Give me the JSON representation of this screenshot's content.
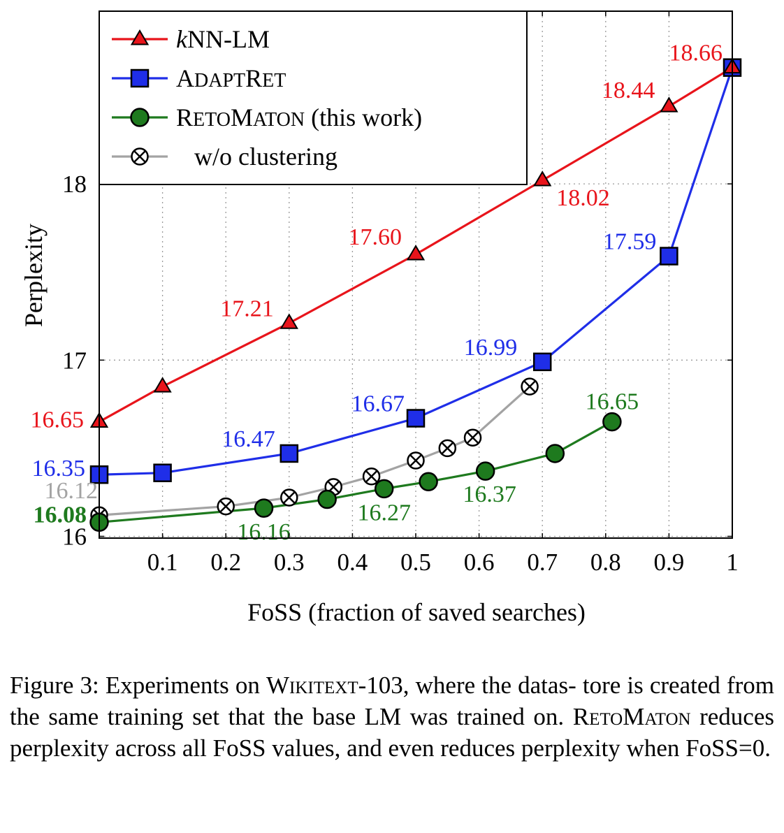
{
  "chart_data": {
    "type": "line",
    "xlabel": "FoSS (fraction of saved searches)",
    "ylabel": "Perplexity",
    "xlim": [
      0,
      1
    ],
    "ylim": [
      15.99,
      18.98
    ],
    "x_ticks": [
      "0.1",
      "0.2",
      "0.3",
      "0.4",
      "0.5",
      "0.6",
      "0.7",
      "0.8",
      "0.9",
      "1"
    ],
    "y_ticks": [
      "16",
      "17",
      "18"
    ],
    "grid": "dotted",
    "legend_position": "top-left",
    "series": [
      {
        "name": "kNN-LM",
        "color": "#e8141b",
        "marker": "triangle",
        "x": [
          0,
          0.1,
          0.3,
          0.5,
          0.7,
          0.9,
          1.0
        ],
        "y": [
          16.65,
          16.85,
          17.21,
          17.6,
          18.02,
          18.44,
          18.66
        ],
        "labels": [
          {
            "i": 0,
            "text": "16.65"
          },
          {
            "i": 2,
            "text": "17.21"
          },
          {
            "i": 3,
            "text": "17.60"
          },
          {
            "i": 4,
            "text": "18.02"
          },
          {
            "i": 5,
            "text": "18.44"
          },
          {
            "i": 6,
            "text": "18.66"
          }
        ]
      },
      {
        "name": "ADAPTRET",
        "color": "#1f2ee8",
        "marker": "square",
        "x": [
          0,
          0.1,
          0.3,
          0.5,
          0.7,
          0.9,
          1.0
        ],
        "y": [
          16.35,
          16.36,
          16.47,
          16.67,
          16.99,
          17.59,
          18.66
        ],
        "labels": [
          {
            "i": 0,
            "text": "16.35"
          },
          {
            "i": 2,
            "text": "16.47"
          },
          {
            "i": 3,
            "text": "16.67"
          },
          {
            "i": 4,
            "text": "16.99"
          },
          {
            "i": 5,
            "text": "17.59"
          }
        ]
      },
      {
        "name": "RETOMATON (this work)",
        "color": "#1e7a1e",
        "marker": "circle",
        "x": [
          0,
          0.26,
          0.36,
          0.45,
          0.52,
          0.61,
          0.72,
          0.81
        ],
        "y": [
          16.08,
          16.16,
          16.21,
          16.27,
          16.31,
          16.37,
          16.47,
          16.65
        ],
        "labels": [
          {
            "i": 0,
            "text": "16.08"
          },
          {
            "i": 1,
            "text": "16.16"
          },
          {
            "i": 3,
            "text": "16.27"
          },
          {
            "i": 5,
            "text": "16.37"
          },
          {
            "i": 7,
            "text": "16.65"
          }
        ]
      },
      {
        "name": "w/o clustering",
        "color": "#a3a3a3",
        "marker": "otimes",
        "x": [
          0,
          0.2,
          0.3,
          0.37,
          0.43,
          0.5,
          0.55,
          0.59,
          0.68
        ],
        "y": [
          16.12,
          16.17,
          16.22,
          16.28,
          16.34,
          16.43,
          16.5,
          16.56,
          16.85
        ],
        "labels": [
          {
            "i": 0,
            "text": "16.12"
          }
        ]
      }
    ]
  },
  "caption": {
    "label": "Figure 3:",
    "line1_a": "Experiments on",
    "line1_dataset": "Wikitext",
    "line1_b": "-103, where the datas-",
    "line2": "tore is created from the same training set that the base LM",
    "line3_a": "was trained on.",
    "line3_method": "RetoMaton",
    "line3_b": "reduces perplexity across all",
    "line4": "FoSS values, and even reduces perplexity when FoSS=0."
  }
}
